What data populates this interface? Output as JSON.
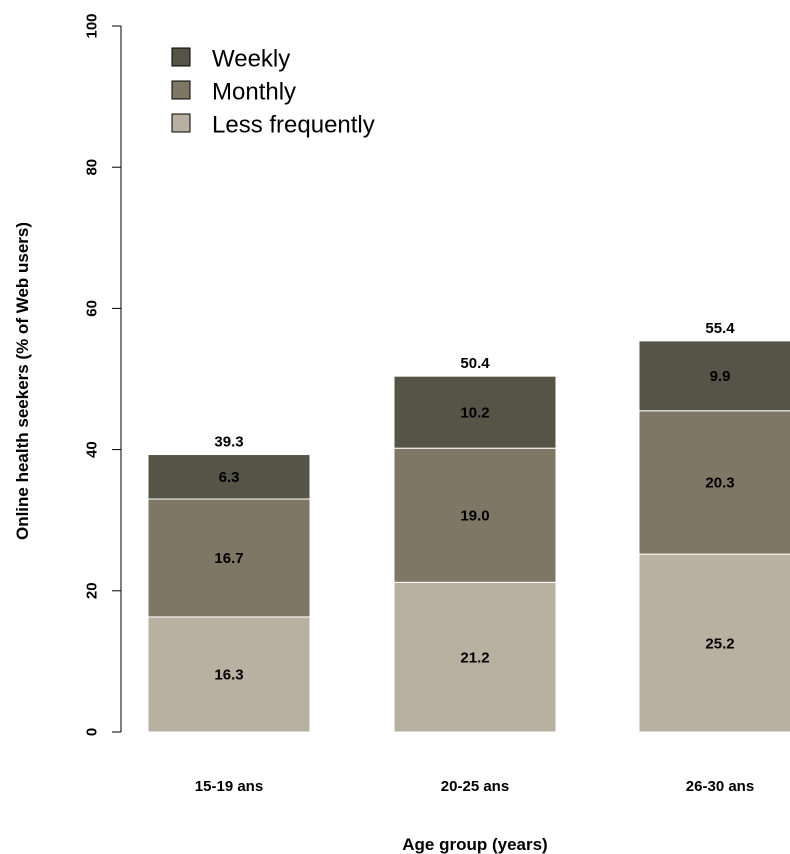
{
  "chart_data": {
    "type": "bar",
    "stacked": true,
    "categories": [
      "15-19 ans",
      "20-25 ans",
      "26-30 ans"
    ],
    "series": [
      {
        "name": "Less frequently",
        "values": [
          16.3,
          21.2,
          25.2
        ],
        "color": "#b8b0a0"
      },
      {
        "name": "Monthly",
        "values": [
          16.7,
          19.0,
          20.3
        ],
        "color": "#7e7766"
      },
      {
        "name": "Weekly",
        "values": [
          6.3,
          10.2,
          9.9
        ],
        "color": "#545546"
      }
    ],
    "segment_labels": [
      [
        "16.3",
        "21.2",
        "25.2"
      ],
      [
        "16.7",
        "19.0",
        "20.3"
      ],
      [
        "6.3",
        "10.2",
        "9.9"
      ]
    ],
    "totals": [
      "39.3",
      "50.4",
      "55.4"
    ],
    "xlabel": "Age group (years)",
    "ylabel": "Online health seekers (% of Web users)",
    "ylim": [
      0,
      100
    ],
    "yticks": [
      "0",
      "20",
      "40",
      "60",
      "80",
      "100"
    ],
    "legend_order": [
      "Weekly",
      "Monthly",
      "Less frequently"
    ],
    "legend_position": "top-left",
    "grid": false
  }
}
